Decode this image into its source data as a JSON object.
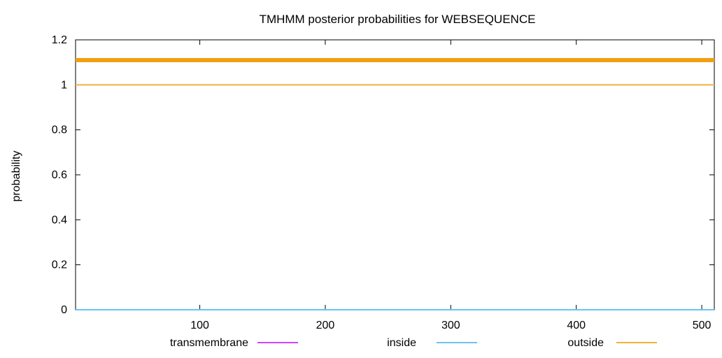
{
  "chart_data": {
    "type": "line",
    "title": "TMHMM posterior probabilities for WEBSEQUENCE",
    "xlabel": "",
    "ylabel": "probability",
    "xlim": [
      1,
      510
    ],
    "ylim": [
      0,
      1.2
    ],
    "x_ticks": [
      100,
      200,
      300,
      400,
      500
    ],
    "y_ticks": [
      0,
      0.2,
      0.4,
      0.6,
      0.8,
      1,
      1.2
    ],
    "y_tick_labels": [
      "0",
      "0.2",
      "0.4",
      "0.6",
      "0.8",
      "1",
      "1.2"
    ],
    "grid": false,
    "legend_position": "bottom",
    "series": [
      {
        "name": "transmembrane",
        "color": "#cc44ff",
        "x": [
          1,
          510
        ],
        "y": [
          0,
          0
        ]
      },
      {
        "name": "inside",
        "color": "#6cc2f0",
        "x": [
          1,
          510
        ],
        "y": [
          0,
          0
        ]
      },
      {
        "name": "outside",
        "color": "#f0b33a",
        "x": [
          1,
          510
        ],
        "y": [
          1,
          1
        ]
      }
    ],
    "bars": [
      {
        "name": "outside",
        "color": "#f0a010",
        "x_start": 1,
        "x_end": 510,
        "y": 1.11
      }
    ]
  }
}
